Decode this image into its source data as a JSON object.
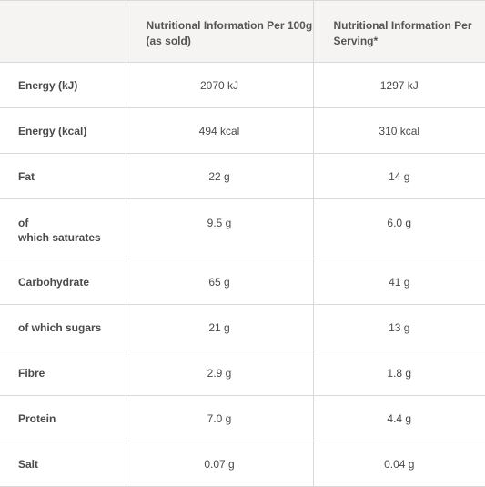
{
  "header": {
    "col_per100g": "Nutritional Information Per 100g (as sold)",
    "col_per_serving": "Nutritional Information Per Serving*"
  },
  "rows": [
    {
      "label": "Energy (kJ)",
      "per100g": "2070 kJ",
      "per_serving": "1297 kJ"
    },
    {
      "label": "Energy (kcal)",
      "per100g": "494 kcal",
      "per_serving": "310 kcal"
    },
    {
      "label": "Fat",
      "per100g": "22 g",
      "per_serving": "14 g"
    },
    {
      "label": "of which saturates",
      "label_line1": "of",
      "label_line2": "which saturates",
      "per100g": "9.5 g",
      "per_serving": "6.0 g"
    },
    {
      "label": "Carbohydrate",
      "per100g": "65 g",
      "per_serving": "41 g"
    },
    {
      "label": "of which sugars",
      "per100g": "21 g",
      "per_serving": "13 g"
    },
    {
      "label": "Fibre",
      "per100g": "2.9 g",
      "per_serving": "1.8 g"
    },
    {
      "label": "Protein",
      "per100g": "7.0 g",
      "per_serving": "4.4 g"
    },
    {
      "label": "Salt",
      "per100g": "0.07 g",
      "per_serving": "0.04 g"
    }
  ]
}
